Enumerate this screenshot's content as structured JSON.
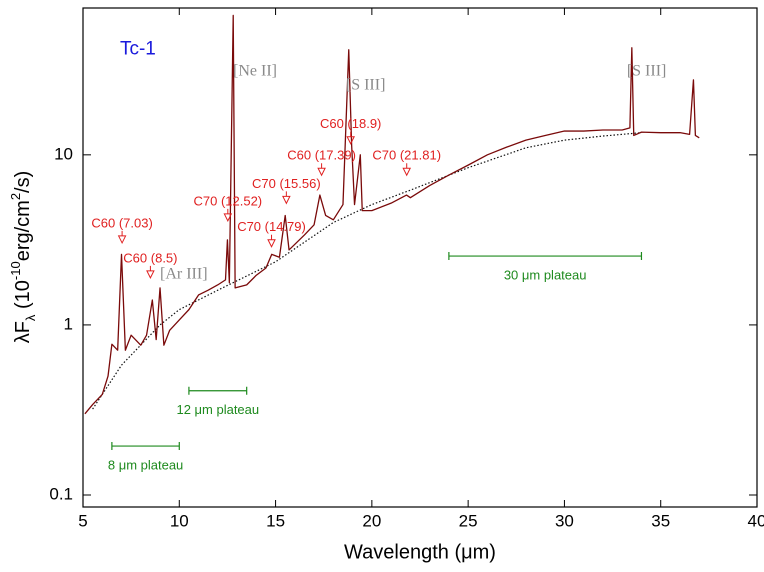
{
  "chart_data": {
    "type": "line",
    "annotation_title": {
      "text": "Tc-1",
      "x": 6.92,
      "y": 41.5,
      "color": "#1a1adc"
    },
    "xlabel": "Wavelength (μm)",
    "ylabel": [
      {
        "text": "λF"
      },
      {
        "text": "λ",
        "shift": "sub"
      },
      {
        "text": " (10"
      },
      {
        "text": "-10",
        "shift": "super"
      },
      {
        "text": "erg/cm"
      },
      {
        "text": "2",
        "shift": "super"
      },
      {
        "text": "/s)"
      }
    ],
    "xlim": [
      5,
      40
    ],
    "xticks": [
      5,
      10,
      15,
      20,
      25,
      30,
      35,
      40
    ],
    "ylim": [
      0.085,
      73
    ],
    "yticks": [
      0.1,
      1,
      10
    ],
    "log_y": true,
    "grid": false,
    "series": [
      {
        "color": "#7a0a0a",
        "style": "solid",
        "x": [
          5.1,
          5.5,
          6.0,
          6.3,
          6.5,
          6.8,
          7.0,
          7.2,
          7.5,
          8.0,
          8.3,
          8.6,
          8.8,
          9.0,
          9.2,
          9.5,
          10,
          10.5,
          11,
          11.5,
          12,
          12.4,
          12.5,
          12.6,
          12.8,
          12.9,
          13.5,
          14,
          14.5,
          14.8,
          15.2,
          15.5,
          15.7,
          16.5,
          17.0,
          17.3,
          17.6,
          18,
          18.5,
          18.8,
          18.95,
          19.1,
          19.4,
          19.5,
          20,
          21,
          21.8,
          22,
          23,
          24,
          25,
          26,
          27,
          28,
          29,
          30,
          31,
          32,
          33,
          33.4,
          33.5,
          33.6,
          34,
          35,
          36,
          36.5,
          36.7,
          36.8,
          37.0
        ],
        "values": [
          0.3,
          0.34,
          0.39,
          0.5,
          0.77,
          0.71,
          2.6,
          0.71,
          0.87,
          0.76,
          0.87,
          1.4,
          0.82,
          1.65,
          0.76,
          0.93,
          1.07,
          1.23,
          1.5,
          1.6,
          1.72,
          1.84,
          3.16,
          1.77,
          66,
          1.65,
          1.72,
          1.96,
          2.16,
          2.6,
          2.5,
          4.4,
          2.76,
          3.38,
          3.88,
          5.8,
          4.4,
          4.15,
          5.1,
          41.5,
          11.4,
          5.1,
          10,
          4.7,
          4.7,
          5.2,
          5.8,
          5.6,
          6.6,
          7.6,
          8.7,
          10,
          11.1,
          12.2,
          13,
          13.8,
          13.8,
          14,
          14,
          14.4,
          42.6,
          13,
          13.6,
          13.5,
          13.5,
          13.2,
          27.6,
          13,
          12.6
        ]
      },
      {
        "color": "#111111",
        "style": "dotted",
        "x": [
          5.5,
          7,
          9,
          10,
          12,
          15,
          18,
          20,
          22,
          25,
          28,
          30,
          32,
          34
        ],
        "values": [
          0.32,
          0.58,
          1.0,
          1.23,
          1.6,
          2.35,
          4.0,
          5.1,
          6.2,
          8.4,
          11,
          12.2,
          12.9,
          13.5
        ]
      }
    ],
    "feature_labels": {
      "color": "#e02020",
      "items": [
        {
          "text": "C60 (7.03)",
          "x": 7.03,
          "y": 3.16
        },
        {
          "text": "C60 (8.5)",
          "x": 8.5,
          "y": 1.97
        },
        {
          "text": "C70 (12.52)",
          "x": 12.52,
          "y": 4.26
        },
        {
          "text": "C70 (14.79)",
          "x": 14.79,
          "y": 3.0
        },
        {
          "text": "C70 (15.56)",
          "x": 15.56,
          "y": 5.4
        },
        {
          "text": "C60 (17.39)",
          "x": 17.39,
          "y": 7.9
        },
        {
          "text": "C60 (18.9)",
          "x": 18.9,
          "y": 12.1
        },
        {
          "text": "C70 (21.81)",
          "x": 21.81,
          "y": 7.9
        }
      ]
    },
    "line_labels": {
      "color": "#8a8a8a",
      "items": [
        {
          "text": "[Ne II]",
          "x": 12.79,
          "y": 30.8
        },
        {
          "text": "[S III]",
          "x": 18.65,
          "y": 25.5
        },
        {
          "text": "[S III]",
          "x": 33.24,
          "y": 30.8
        },
        {
          "text": "[Ar III]",
          "x": 9.0,
          "y": 1.97
        }
      ]
    },
    "plateaus": {
      "color": "#1e8a1e",
      "items": [
        {
          "text": "8 μm plateau",
          "x": [
            6.5,
            10
          ],
          "y": 0.194
        },
        {
          "text": "12 μm plateau",
          "x": [
            10.5,
            13.5
          ],
          "y": 0.41
        },
        {
          "text": "30 μm plateau",
          "x": [
            24,
            34
          ],
          "y": 2.54
        }
      ]
    }
  }
}
